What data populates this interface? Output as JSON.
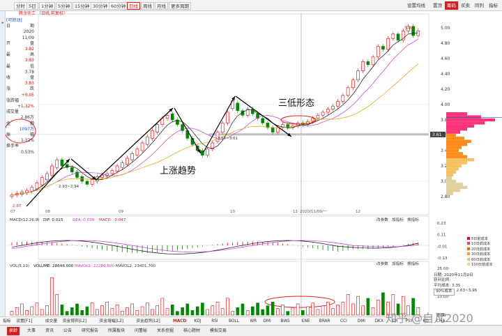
{
  "toolbar": {
    "periods": [
      "分时",
      "5日",
      "1分钟",
      "5分钟",
      "15分钟",
      "30分钟",
      "60分钟",
      "日线",
      "周线",
      "月线",
      "更多周期"
    ],
    "active": "日线",
    "right_tabs": [
      "设置均线"
    ],
    "title_tag": "（日线,前复权）",
    "stock_name": "腾龙化工"
  },
  "topright": {
    "tabs": [
      "置顶",
      "筹码",
      "买卖",
      "同列",
      "指标"
    ],
    "active": "筹码"
  },
  "info": {
    "header": "[可转动]",
    "rows": [
      {
        "label": "日",
        "value": "期"
      },
      {
        "label": "",
        "value": "2020"
      },
      {
        "label": "",
        "value": "11/09"
      },
      {
        "label": "开",
        "value": "盘"
      },
      {
        "label": "",
        "value": "3.82",
        "cls": "red"
      },
      {
        "label": "最",
        "value": "高"
      },
      {
        "label": "",
        "value": "3.83",
        "cls": "red"
      },
      {
        "label": "最",
        "value": "低"
      },
      {
        "label": "",
        "value": "3.78",
        "cls": ""
      },
      {
        "label": "收",
        "value": "盘"
      },
      {
        "label": "",
        "value": "3.83",
        "cls": "red"
      },
      {
        "label": "涨",
        "value": "跌"
      },
      {
        "label": "",
        "value": "+0.05",
        "cls": "red"
      },
      {
        "label": "涨跌幅",
        "value": ""
      },
      {
        "label": "",
        "value": "+1.32%",
        "cls": "red"
      },
      {
        "label": "成交量",
        "value": ""
      },
      {
        "label": "",
        "value": "2.86万",
        "cls": ""
      },
      {
        "label": "金",
        "value": "额"
      },
      {
        "label": "",
        "value": "1097万",
        "cls": "blue"
      },
      {
        "label": "振",
        "value": "幅"
      },
      {
        "label": "",
        "value": "1.32%",
        "cls": ""
      },
      {
        "label": "换手率",
        "value": ""
      },
      {
        "label": "",
        "value": "0.53%",
        "cls": ""
      }
    ]
  },
  "annotations": {
    "uptrend": "上涨趋势",
    "triple_low": "三低形态",
    "label_293": "2.93~2.94",
    "label_357": "3.57~3.61",
    "label_504": "5.04",
    "label_361": "3.61",
    "label_start": "2.97"
  },
  "price_axis": [
    "5.00",
    "4.80",
    "4.60",
    "4.40",
    "4.20",
    "4.00",
    "3.80",
    "3.60",
    "3.40",
    "3.20",
    "3.00",
    "2.80"
  ],
  "date_axis": [
    "07",
    "08",
    "09",
    "10",
    "11",
    "12",
    "2020/11/09/一"
  ],
  "macd": {
    "title": "MACD(12,26,9)",
    "dif": "DIF: 0.015",
    "dea": "DEA: 0.039",
    "macd": "MACD: -0.047",
    "axis": [
      "0.23",
      "0.11",
      "-0.01",
      "-0.13"
    ]
  },
  "vol": {
    "title": "VOL(5,10)",
    "volume": "VOLUME: 28646.000",
    "mavol1": "MAVOL1: 22280.600",
    "mavol2": "MAVOL2: 23401.700",
    "axis": [
      "25.00",
      "10.00",
      "0.00",
      "万手"
    ]
  },
  "panel_buttons": [
    "改参数",
    "加指标",
    "换指标"
  ],
  "indicator_tabs": [
    "指标",
    "设置[F1]",
    "成交量",
    "资金博弈[L2]",
    "资金增幅[L2]",
    "资金趋势[L2]",
    "MACD",
    "KDJ",
    "RSI",
    "BOLL",
    "WR",
    "DMI",
    "BIAS",
    "ENE",
    "BRAR",
    "CCI",
    "DMI",
    "DKX",
    "CR",
    "PSY",
    "KD",
    "CMA"
  ],
  "indicator_active": "MACD",
  "bottom_tabs": [
    "泉龄",
    "大事",
    "资讯",
    "公告",
    "研究报告",
    "所属板块",
    "问董秘",
    "关系挖掘",
    "核心题材",
    "模拟交易"
  ],
  "bottom_active": "泉龄",
  "cost_legend": [
    {
      "label": "5日前成本",
      "color": "#e60000"
    },
    {
      "label": "10日前成本",
      "color": "#ff3377"
    },
    {
      "label": "20日前成本",
      "color": "#ff6600"
    },
    {
      "label": "30日前成本",
      "color": "#ff9933"
    },
    {
      "label": "60日前成本",
      "color": "#ffbb66"
    },
    {
      "label": "100日前成本",
      "color": "#e8d4a0"
    }
  ],
  "cost_info": {
    "date": "日期: 2020年11月9日",
    "profit": "获利比例:",
    "avg_cost": "平均成本: 3.35",
    "pct90": "90%成本",
    "pct90_range": "2.63~3.96"
  },
  "watermark": "知乎 @自凡2020",
  "colors": {
    "up": "#e00000",
    "down": "#008800",
    "ma_black": "#111111",
    "ma_pink": "#cc33cc"
  }
}
